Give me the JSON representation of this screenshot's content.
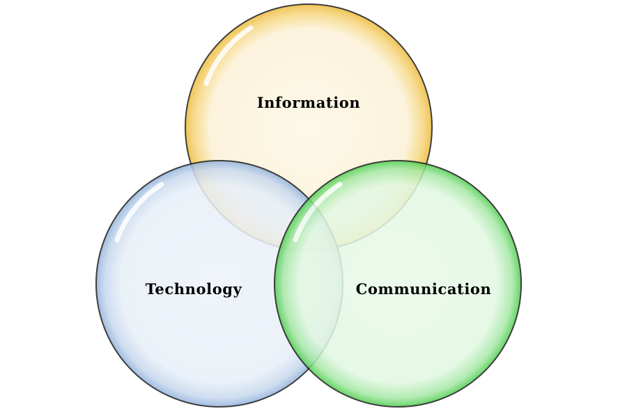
{
  "diagram": {
    "type": "venn",
    "circles": [
      {
        "id": "information",
        "label": "Information",
        "fill": "#fdf6e3",
        "ring": "#f2c54a",
        "stroke": "#1e1e1e"
      },
      {
        "id": "technology",
        "label": "Technology",
        "fill": "#edf2f9",
        "ring": "#a9c3e3",
        "stroke": "#1e1e1e"
      },
      {
        "id": "communication",
        "label": "Communication",
        "fill": "#e8f8e8",
        "ring": "#63d463",
        "stroke": "#1e1e1e"
      }
    ]
  }
}
